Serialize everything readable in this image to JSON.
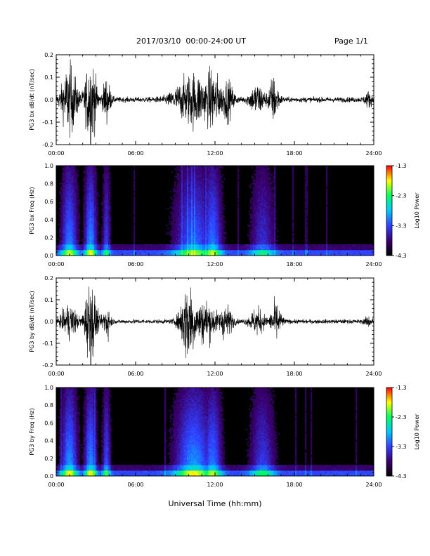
{
  "header": {
    "date_range": "2017/03/10  00:00-24:00 UT",
    "page": "Page 1/1"
  },
  "x_axis_label": "Universal Time (hh:mm)",
  "colorbar": {
    "label": "Log10 Power",
    "ticks": [
      "-1.3",
      "-2.3",
      "-3.3",
      "-4.3"
    ],
    "range": [
      -4.3,
      -1.3
    ]
  },
  "chart_data": [
    {
      "type": "line",
      "ylabel": "PG3 bx dB/dt (nT/sec)",
      "xlim": [
        "00:00",
        "24:00"
      ],
      "ylim": [
        -0.2,
        0.2
      ],
      "x_ticks": [
        "00:00",
        "06:00",
        "12:00",
        "18:00",
        "24:00"
      ],
      "y_ticks": [
        "0.2",
        "0.1",
        "0.0",
        "-0.1",
        "-0.2"
      ],
      "activity_bursts": [
        {
          "center_hour": 1.0,
          "width_hour": 0.6,
          "amplitude": 0.16
        },
        {
          "center_hour": 2.6,
          "width_hour": 0.45,
          "amplitude": 0.2
        },
        {
          "center_hour": 3.8,
          "width_hour": 0.3,
          "amplitude": 0.1
        },
        {
          "center_hour": 10.4,
          "width_hour": 1.4,
          "amplitude": 0.12
        },
        {
          "center_hour": 11.8,
          "width_hour": 0.7,
          "amplitude": 0.14
        },
        {
          "center_hour": 12.9,
          "width_hour": 0.5,
          "amplitude": 0.09
        },
        {
          "center_hour": 15.2,
          "width_hour": 0.6,
          "amplitude": 0.07
        },
        {
          "center_hour": 16.4,
          "width_hour": 0.4,
          "amplitude": 0.1
        },
        {
          "center_hour": 23.6,
          "width_hour": 0.3,
          "amplitude": 0.03
        }
      ],
      "background_amplitude": 0.012
    },
    {
      "type": "heatmap",
      "ylabel": "PG3 bx Freq (Hz)",
      "xlim": [
        "00:00",
        "24:00"
      ],
      "ylim": [
        0.0,
        1.0
      ],
      "x_ticks": [
        "00:00",
        "06:00",
        "12:00",
        "18:00",
        "24:00"
      ],
      "y_ticks": [
        "1.0",
        "0.8",
        "0.6",
        "0.4",
        "0.2",
        "0.0"
      ],
      "colormap": [
        "#000000",
        "#3a0070",
        "#3040ff",
        "#00c8ff",
        "#00ff60",
        "#ffff00",
        "#ff0000"
      ],
      "power_range": [
        -4.3,
        -1.3
      ],
      "activity_bursts": [
        {
          "center_hour": 1.0,
          "width_hour": 0.6,
          "power": -3.2
        },
        {
          "center_hour": 2.6,
          "width_hour": 0.45,
          "power": -3.1
        },
        {
          "center_hour": 3.8,
          "width_hour": 0.3,
          "power": -3.5
        },
        {
          "center_hour": 10.4,
          "width_hour": 1.4,
          "power": -3.3
        },
        {
          "center_hour": 11.8,
          "width_hour": 0.7,
          "power": -3.2
        },
        {
          "center_hour": 15.6,
          "width_hour": 0.9,
          "power": -3.6
        }
      ]
    },
    {
      "type": "line",
      "ylabel": "PG3 by dB/dt (nT/sec)",
      "xlim": [
        "00:00",
        "24:00"
      ],
      "ylim": [
        -0.2,
        0.2
      ],
      "x_ticks": [
        "00:00",
        "06:00",
        "12:00",
        "18:00",
        "24:00"
      ],
      "y_ticks": [
        "0.2",
        "0.1",
        "0.0",
        "-0.1",
        "-0.2"
      ],
      "activity_bursts": [
        {
          "center_hour": 1.0,
          "width_hour": 0.6,
          "amplitude": 0.08
        },
        {
          "center_hour": 2.6,
          "width_hour": 0.45,
          "amplitude": 0.2
        },
        {
          "center_hour": 3.8,
          "width_hour": 0.3,
          "amplitude": 0.08
        },
        {
          "center_hour": 10.0,
          "width_hour": 0.6,
          "amplitude": 0.2
        },
        {
          "center_hour": 11.2,
          "width_hour": 1.0,
          "amplitude": 0.1
        },
        {
          "center_hour": 12.8,
          "width_hour": 0.5,
          "amplitude": 0.08
        },
        {
          "center_hour": 15.2,
          "width_hour": 0.6,
          "amplitude": 0.06
        },
        {
          "center_hour": 16.6,
          "width_hour": 0.4,
          "amplitude": 0.09
        },
        {
          "center_hour": 23.6,
          "width_hour": 0.3,
          "amplitude": 0.02
        }
      ],
      "background_amplitude": 0.01
    },
    {
      "type": "heatmap",
      "ylabel": "PG3 by Freq (Hz)",
      "xlim": [
        "00:00",
        "24:00"
      ],
      "ylim": [
        0.0,
        1.0
      ],
      "x_ticks": [
        "00:00",
        "06:00",
        "12:00",
        "18:00",
        "24:00"
      ],
      "y_ticks": [
        "1.0",
        "0.8",
        "0.6",
        "0.4",
        "0.2",
        "0.0"
      ],
      "colormap": [
        "#000000",
        "#3a0070",
        "#3040ff",
        "#00c8ff",
        "#00ff60",
        "#ffff00",
        "#ff0000"
      ],
      "power_range": [
        -4.3,
        -1.3
      ],
      "activity_bursts": [
        {
          "center_hour": 1.0,
          "width_hour": 0.6,
          "power": -3.1
        },
        {
          "center_hour": 2.6,
          "width_hour": 0.45,
          "power": -3.1
        },
        {
          "center_hour": 3.8,
          "width_hour": 0.3,
          "power": -3.4
        },
        {
          "center_hour": 10.4,
          "width_hour": 1.4,
          "power": -3.1
        },
        {
          "center_hour": 11.8,
          "width_hour": 0.7,
          "power": -3.2
        },
        {
          "center_hour": 15.6,
          "width_hour": 0.9,
          "power": -3.5
        }
      ]
    }
  ]
}
